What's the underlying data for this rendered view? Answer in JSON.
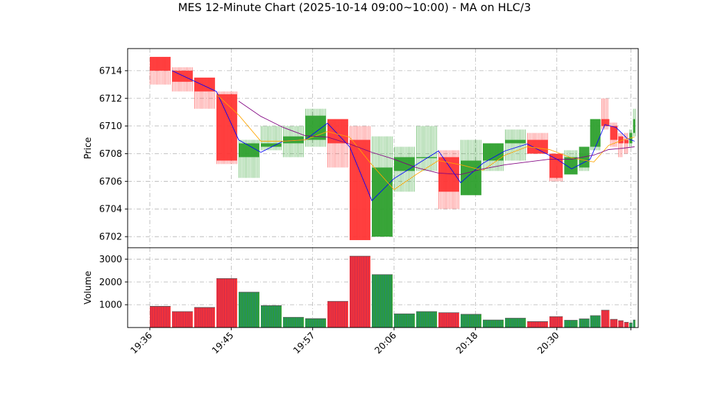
{
  "chart_data": {
    "type": "candlestick",
    "title": "MES 12-Minute Chart (2025-10-14 09:00~10:00) - MA on HLC/3",
    "price_panel": {
      "ylabel": "Price",
      "ylim": [
        6701.2,
        6715.6
      ],
      "yticks": [
        6702,
        6704,
        6706,
        6708,
        6710,
        6712,
        6714
      ],
      "grid": true
    },
    "volume_panel": {
      "ylabel": "Volume",
      "ylim": [
        0,
        3500
      ],
      "yticks": [
        1000,
        2000,
        3000
      ],
      "grid": true
    },
    "xlim": [
      -3,
      66
    ],
    "x_ticks": [
      {
        "index": 0,
        "label": "19:36"
      },
      {
        "index": 11,
        "label": "19:45"
      },
      {
        "index": 22,
        "label": "19:57"
      },
      {
        "index": 33,
        "label": "20:06"
      },
      {
        "index": 44,
        "label": "20:18"
      },
      {
        "index": 55,
        "label": "20:30"
      },
      {
        "index": 65,
        "label": ""
      }
    ],
    "colors": {
      "up": "#2ca02c",
      "down": "#ff3333",
      "ma_fast": "#0000ff",
      "ma_mid": "#ffa500",
      "ma_slow": "#800080"
    },
    "bars": [
      {
        "x0": 0,
        "x1": 2.8,
        "o": 6715,
        "h": 6715,
        "l": 6713,
        "c": 6714,
        "v": 930
      },
      {
        "x0": 3,
        "x1": 5.8,
        "o": 6714,
        "h": 6714.25,
        "l": 6712.5,
        "c": 6713.2,
        "v": 700
      },
      {
        "x0": 6,
        "x1": 8.8,
        "o": 6713.5,
        "h": 6713.5,
        "l": 6711.25,
        "c": 6712.5,
        "v": 880
      },
      {
        "x0": 9,
        "x1": 11.8,
        "o": 6712.3,
        "h": 6712.5,
        "l": 6707.25,
        "c": 6707.5,
        "v": 2150
      },
      {
        "x0": 12,
        "x1": 14.8,
        "o": 6707.75,
        "h": 6709,
        "l": 6706.25,
        "c": 6708.75,
        "v": 1550
      },
      {
        "x0": 15,
        "x1": 17.8,
        "o": 6708.5,
        "h": 6710,
        "l": 6708.25,
        "c": 6708.75,
        "v": 960
      },
      {
        "x0": 18,
        "x1": 20.8,
        "o": 6708.75,
        "h": 6710,
        "l": 6707.75,
        "c": 6709.25,
        "v": 450
      },
      {
        "x0": 21,
        "x1": 23.8,
        "o": 6709,
        "h": 6711.25,
        "l": 6708.5,
        "c": 6710.75,
        "v": 390
      },
      {
        "x0": 24,
        "x1": 26.8,
        "o": 6710.5,
        "h": 6710.5,
        "l": 6707,
        "c": 6708.75,
        "v": 1150
      },
      {
        "x0": 27,
        "x1": 29.8,
        "o": 6709,
        "h": 6710,
        "l": 6701.75,
        "c": 6701.75,
        "v": 3130
      },
      {
        "x0": 30,
        "x1": 32.8,
        "o": 6702,
        "h": 6709.25,
        "l": 6702,
        "c": 6707,
        "v": 2320
      },
      {
        "x0": 33,
        "x1": 35.8,
        "o": 6706.75,
        "h": 6708.5,
        "l": 6705.25,
        "c": 6707.75,
        "v": 600
      },
      {
        "x0": 36,
        "x1": 38.8,
        "o": 6707.75,
        "h": 6710,
        "l": 6706.75,
        "c": 6707.75,
        "v": 700
      },
      {
        "x0": 39,
        "x1": 41.8,
        "o": 6707.75,
        "h": 6708.25,
        "l": 6704,
        "c": 6705.25,
        "v": 650
      },
      {
        "x0": 42,
        "x1": 44.8,
        "o": 6705,
        "h": 6709,
        "l": 6705,
        "c": 6707.5,
        "v": 580
      },
      {
        "x0": 45,
        "x1": 47.8,
        "o": 6707.5,
        "h": 6708.75,
        "l": 6706.75,
        "c": 6708.75,
        "v": 330
      },
      {
        "x0": 48,
        "x1": 50.8,
        "o": 6708.75,
        "h": 6709.75,
        "l": 6707.5,
        "c": 6709,
        "v": 410
      },
      {
        "x0": 51,
        "x1": 53.8,
        "o": 6709,
        "h": 6709.5,
        "l": 6708,
        "c": 6708,
        "v": 260
      },
      {
        "x0": 54,
        "x1": 55.8,
        "o": 6708,
        "h": 6708,
        "l": 6706,
        "c": 6706.25,
        "v": 480
      },
      {
        "x0": 56,
        "x1": 57.8,
        "o": 6706.5,
        "h": 6708.25,
        "l": 6706.5,
        "c": 6707.75,
        "v": 320
      },
      {
        "x0": 58,
        "x1": 59.4,
        "o": 6707,
        "h": 6708,
        "l": 6706.75,
        "c": 6708.5,
        "v": 380
      },
      {
        "x0": 59.5,
        "x1": 60.9,
        "o": 6708.5,
        "h": 6710.5,
        "l": 6708.25,
        "c": 6710.5,
        "v": 520
      },
      {
        "x0": 61,
        "x1": 62.1,
        "o": 6710.5,
        "h": 6712,
        "l": 6709.75,
        "c": 6710,
        "v": 760
      },
      {
        "x0": 62.2,
        "x1": 63.2,
        "o": 6710,
        "h": 6710.25,
        "l": 6708.5,
        "c": 6709,
        "v": 360
      },
      {
        "x0": 63.3,
        "x1": 64.0,
        "o": 6709.25,
        "h": 6709.5,
        "l": 6707.75,
        "c": 6708.75,
        "v": 300
      },
      {
        "x0": 64.1,
        "x1": 64.7,
        "o": 6709,
        "h": 6709.5,
        "l": 6708,
        "c": 6708.75,
        "v": 230
      },
      {
        "x0": 64.8,
        "x1": 65.2,
        "o": 6708.75,
        "h": 6709.75,
        "l": 6708.5,
        "c": 6709.5,
        "v": 200
      },
      {
        "x0": 65.3,
        "x1": 65.6,
        "o": 6709.5,
        "h": 6711.25,
        "l": 6709.25,
        "c": 6710.5,
        "v": 330
      }
    ],
    "series": [
      {
        "key": "ma_fast",
        "x": [
          3,
          9,
          12,
          15,
          18,
          21,
          24,
          27,
          30,
          33,
          36,
          39,
          42,
          45,
          48,
          51,
          55,
          57,
          59.5,
          61.5,
          63,
          64.5,
          65.5
        ],
        "values": [
          6714,
          6712.5,
          6709,
          6708.1,
          6708.9,
          6709,
          6710.2,
          6708.5,
          6704.6,
          6706.2,
          6707.2,
          6708.2,
          6705.9,
          6707.3,
          6708.2,
          6708.7,
          6707.6,
          6706.9,
          6707.6,
          6710.1,
          6709.9,
          6709.1,
          6708.9
        ]
      },
      {
        "key": "ma_mid",
        "x": [
          9,
          12,
          15,
          18,
          21,
          24,
          27,
          30,
          33,
          36,
          39,
          42,
          45,
          48,
          51,
          54,
          57,
          60,
          62,
          64,
          65.5
        ],
        "values": [
          6712.3,
          6710.8,
          6708.9,
          6708.9,
          6709,
          6709.6,
          6709.2,
          6707.2,
          6705.4,
          6706.5,
          6707.5,
          6707.2,
          6706.8,
          6707.9,
          6708.5,
          6708.3,
          6707.7,
          6707.4,
          6708.6,
          6709,
          6709.2
        ]
      },
      {
        "key": "ma_slow",
        "x": [
          12,
          15,
          18,
          21,
          24,
          27,
          30,
          33,
          36,
          39,
          42,
          45,
          48,
          51,
          54,
          57,
          60,
          62,
          64,
          65.5
        ],
        "values": [
          6711.8,
          6710.7,
          6709.9,
          6709.3,
          6709.2,
          6708.7,
          6708.1,
          6707.6,
          6707,
          6706.6,
          6706.5,
          6706.9,
          6707.2,
          6707.4,
          6707.6,
          6707.6,
          6707.9,
          6708.3,
          6708.4,
          6708.5
        ]
      }
    ]
  }
}
